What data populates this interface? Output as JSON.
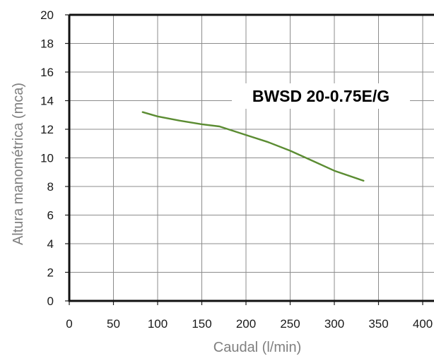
{
  "chart_data": {
    "type": "line",
    "title": "BWSD 20-0.75E/G",
    "xlabel": "Caudal (l/min)",
    "ylabel": "Altura manométrica (mca)",
    "xlim": [
      0,
      400
    ],
    "ylim": [
      0,
      20
    ],
    "xticks": [
      "0",
      "50",
      "100",
      "150",
      "200",
      "250",
      "300",
      "350",
      "400"
    ],
    "yticks": [
      "0",
      "2",
      "4",
      "6",
      "8",
      "10",
      "12",
      "14",
      "16",
      "18",
      "20"
    ],
    "grid": true,
    "series": [
      {
        "x": [
          83,
          100,
          125,
          150,
          170,
          200,
          225,
          250,
          275,
          300,
          333
        ],
        "y": [
          13.2,
          12.9,
          12.6,
          12.35,
          12.2,
          11.6,
          11.1,
          10.5,
          9.8,
          9.1,
          8.4
        ],
        "color": "#5b8c32"
      }
    ]
  }
}
